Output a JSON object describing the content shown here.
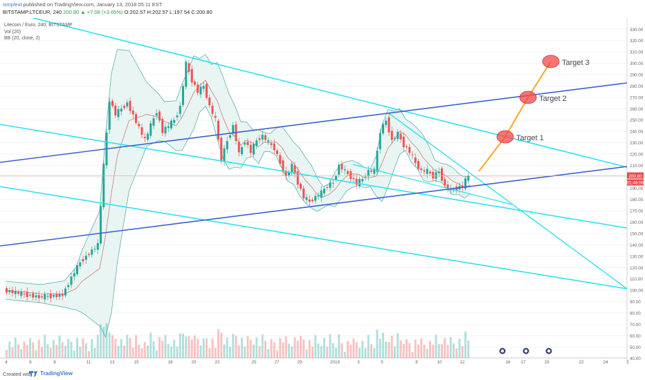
{
  "header": {
    "user": "simplext",
    "published": "published on TradingView.com, January 13, 2018 05:11 EST",
    "symbol_line": "BITSTAMP:LTCEUR, 240",
    "change": "200.80 ▲ +7.08 (+3.65%)",
    "ohlc": "O:202.57 H:202.57 L:197.54 C:200.80"
  },
  "legend": {
    "title": "Litecoin / Euro, 240, BITSTAMP",
    "vol": "Vol (20)",
    "bb": "BB (20, close, 2)"
  },
  "footer": {
    "created": "Created with",
    "brand": "TradingView"
  },
  "colors": {
    "up": "#26a69a",
    "down": "#ef5350",
    "channel_cyan": "#2de2f0",
    "channel_blue": "#3a5fcd",
    "target_line": "#ffa51f",
    "target_fill": "#f04848",
    "bb_fill": "#e8f5f3",
    "bb_band": "#5fb0a5",
    "bb_mid": "#b33",
    "price_tag": "#e84b4b"
  },
  "chart_data": {
    "type": "candlestick",
    "title": "Litecoin / Euro, 240, BITSTAMP",
    "y_ticks": [
      40,
      50,
      60,
      70,
      80,
      90,
      100,
      110,
      120,
      130,
      140,
      150,
      160,
      170,
      180,
      190,
      200,
      210,
      220,
      230,
      240,
      250,
      260,
      270,
      280,
      290,
      300,
      310,
      320,
      330
    ],
    "x_tick_labels": [
      "4",
      "6",
      "8",
      "11",
      "13",
      "15",
      "18",
      "20",
      "22",
      "25",
      "27",
      "29",
      "2018",
      "3",
      "5",
      "8",
      "10",
      "12",
      "16",
      "17",
      "19",
      "22",
      "24",
      "2"
    ],
    "last_price": "200.80",
    "countdown": "01:48:59",
    "price_series": [
      {
        "t": 0,
        "c": 100
      },
      {
        "t": 6,
        "c": 94
      },
      {
        "t": 10,
        "c": 96
      },
      {
        "t": 12,
        "c": 116
      },
      {
        "t": 13,
        "c": 125
      },
      {
        "t": 16,
        "c": 140
      },
      {
        "t": 17,
        "c": 210
      },
      {
        "t": 18,
        "c": 268
      },
      {
        "t": 19,
        "c": 255
      },
      {
        "t": 21,
        "c": 265
      },
      {
        "t": 24,
        "c": 232
      },
      {
        "t": 26,
        "c": 258
      },
      {
        "t": 27,
        "c": 240
      },
      {
        "t": 29,
        "c": 250
      },
      {
        "t": 30,
        "c": 262
      },
      {
        "t": 31,
        "c": 300
      },
      {
        "t": 32,
        "c": 285
      },
      {
        "t": 33,
        "c": 275
      },
      {
        "t": 34,
        "c": 280
      },
      {
        "t": 35,
        "c": 262
      },
      {
        "t": 36,
        "c": 250
      },
      {
        "t": 37,
        "c": 215
      },
      {
        "t": 38,
        "c": 232
      },
      {
        "t": 39,
        "c": 245
      },
      {
        "t": 40,
        "c": 220
      },
      {
        "t": 41,
        "c": 232
      },
      {
        "t": 42,
        "c": 222
      },
      {
        "t": 43,
        "c": 232
      },
      {
        "t": 44,
        "c": 236
      },
      {
        "t": 45,
        "c": 230
      },
      {
        "t": 46,
        "c": 225
      },
      {
        "t": 47,
        "c": 212
      },
      {
        "t": 48,
        "c": 200
      },
      {
        "t": 49,
        "c": 210
      },
      {
        "t": 50,
        "c": 195
      },
      {
        "t": 51,
        "c": 182
      },
      {
        "t": 52,
        "c": 178
      },
      {
        "t": 53,
        "c": 182
      },
      {
        "t": 54,
        "c": 186
      },
      {
        "t": 55,
        "c": 192
      },
      {
        "t": 56,
        "c": 195
      },
      {
        "t": 57,
        "c": 210
      },
      {
        "t": 58,
        "c": 205
      },
      {
        "t": 59,
        "c": 200
      },
      {
        "t": 60,
        "c": 194
      },
      {
        "t": 61,
        "c": 198
      },
      {
        "t": 62,
        "c": 205
      },
      {
        "t": 63,
        "c": 205
      },
      {
        "t": 64,
        "c": 240
      },
      {
        "t": 65,
        "c": 250
      },
      {
        "t": 66,
        "c": 232
      },
      {
        "t": 67,
        "c": 238
      },
      {
        "t": 68,
        "c": 228
      },
      {
        "t": 69,
        "c": 222
      },
      {
        "t": 70,
        "c": 212
      },
      {
        "t": 71,
        "c": 205
      },
      {
        "t": 72,
        "c": 205
      },
      {
        "t": 73,
        "c": 200
      },
      {
        "t": 74,
        "c": 205
      },
      {
        "t": 75,
        "c": 192
      },
      {
        "t": 76,
        "c": 188
      },
      {
        "t": 77,
        "c": 190
      },
      {
        "t": 78,
        "c": 192
      },
      {
        "t": 79,
        "c": 201
      }
    ],
    "annotations": [
      {
        "label": "Target 1",
        "price": 233
      },
      {
        "label": "Target 2",
        "price": 268
      },
      {
        "label": "Target 3",
        "price": 298
      }
    ],
    "overlays": [
      "Vol (20)",
      "BB (20, close, 2)"
    ]
  }
}
